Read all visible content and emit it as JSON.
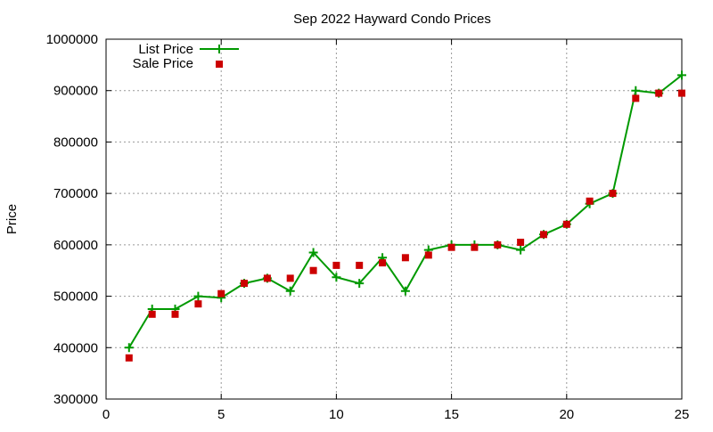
{
  "chart_data": {
    "type": "line",
    "title": "Sep 2022 Hayward Condo Prices",
    "xlabel": "",
    "ylabel": "Price",
    "xlim": [
      0,
      25
    ],
    "ylim": [
      300000,
      1000000
    ],
    "xticks": [
      0,
      5,
      10,
      15,
      20,
      25
    ],
    "yticks": [
      300000,
      400000,
      500000,
      600000,
      700000,
      800000,
      900000,
      1000000
    ],
    "grid": true,
    "legend_position": "top-left",
    "series": [
      {
        "name": "List Price",
        "style": "line-with-plus-markers",
        "color": "#009900",
        "x": [
          1,
          2,
          3,
          4,
          5,
          6,
          7,
          8,
          9,
          10,
          11,
          12,
          13,
          14,
          15,
          16,
          17,
          18,
          19,
          20,
          21,
          22,
          23,
          24,
          25
        ],
        "values": [
          400000,
          475000,
          475000,
          500000,
          497000,
          525000,
          535000,
          510000,
          585000,
          537000,
          525000,
          575000,
          510000,
          590000,
          600000,
          600000,
          600000,
          590000,
          620000,
          640000,
          680000,
          700000,
          900000,
          895000,
          930000
        ]
      },
      {
        "name": "Sale Price",
        "style": "square-markers",
        "color": "#cc0000",
        "x": [
          1,
          2,
          3,
          4,
          5,
          6,
          7,
          8,
          9,
          10,
          11,
          12,
          13,
          14,
          15,
          16,
          17,
          18,
          19,
          20,
          21,
          22,
          23,
          24,
          25
        ],
        "values": [
          380000,
          465000,
          465000,
          485000,
          505000,
          525000,
          535000,
          535000,
          550000,
          560000,
          560000,
          565000,
          575000,
          580000,
          595000,
          595000,
          600000,
          605000,
          620000,
          640000,
          685000,
          700000,
          885000,
          895000,
          895000
        ]
      }
    ]
  }
}
